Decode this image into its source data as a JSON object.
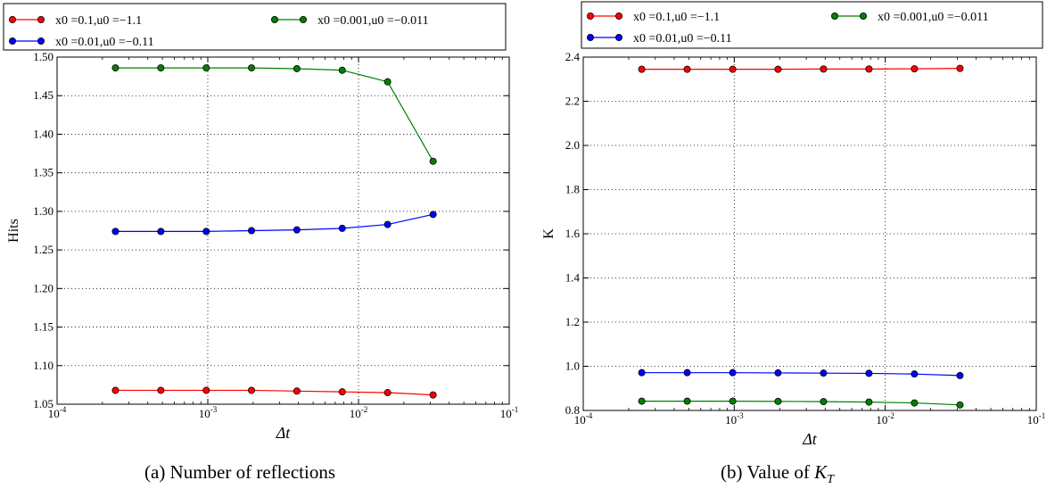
{
  "chart_data": [
    {
      "type": "line",
      "caption": "(a) Number of reflections",
      "xlabel": "Δt",
      "ylabel": "Hits",
      "xscale": "log",
      "xlim": [
        0.0001,
        0.1
      ],
      "ylim": [
        1.05,
        1.5
      ],
      "xticks": [
        0.0001,
        0.001,
        0.01,
        0.1
      ],
      "xtick_labels": [
        {
          "base": "10",
          "exp": "-4"
        },
        {
          "base": "10",
          "exp": "-3"
        },
        {
          "base": "10",
          "exp": "-2"
        },
        {
          "base": "10",
          "exp": "-1"
        }
      ],
      "yticks": [
        "1.05",
        "1.10",
        "1.15",
        "1.20",
        "1.25",
        "1.30",
        "1.35",
        "1.40",
        "1.45",
        "1.50"
      ],
      "grid": true,
      "legend_position": "above",
      "x": [
        0.000244,
        0.000488,
        0.000977,
        0.00195,
        0.0039,
        0.0078,
        0.0156,
        0.03125
      ],
      "series": [
        {
          "name": "x0 =0.1,u0 =−1.1",
          "color": "#ff0000",
          "values": [
            1.068,
            1.068,
            1.068,
            1.068,
            1.067,
            1.066,
            1.065,
            1.062
          ]
        },
        {
          "name": "x0 =0.01,u0 =−0.11",
          "color": "#0000ff",
          "values": [
            1.274,
            1.274,
            1.274,
            1.275,
            1.276,
            1.278,
            1.283,
            1.296
          ]
        },
        {
          "name": "x0 =0.001,u0 =−0.011",
          "color": "#008000",
          "values": [
            1.486,
            1.486,
            1.486,
            1.486,
            1.485,
            1.483,
            1.468,
            1.365
          ]
        }
      ]
    },
    {
      "type": "line",
      "caption_text": "(b) Value of ",
      "caption_math": "K",
      "caption_sub": "T",
      "xlabel": "Δt",
      "ylabel": "K",
      "xscale": "log",
      "xlim": [
        0.0001,
        0.1
      ],
      "ylim": [
        0.8,
        2.4
      ],
      "xticks": [
        0.0001,
        0.001,
        0.01,
        0.1
      ],
      "xtick_labels": [
        {
          "base": "10",
          "exp": "-4"
        },
        {
          "base": "10",
          "exp": "-3"
        },
        {
          "base": "10",
          "exp": "-2"
        },
        {
          "base": "10",
          "exp": "-1"
        }
      ],
      "yticks": [
        "0.8",
        "1.0",
        "1.2",
        "1.4",
        "1.6",
        "1.8",
        "2.0",
        "2.2",
        "2.4"
      ],
      "grid": true,
      "legend_position": "above",
      "x": [
        0.000244,
        0.000488,
        0.000977,
        0.00195,
        0.0039,
        0.0078,
        0.0156,
        0.03125
      ],
      "series": [
        {
          "name": "x0 =0.1,u0 =−1.1",
          "color": "#ff0000",
          "values": [
            2.345,
            2.345,
            2.345,
            2.345,
            2.346,
            2.346,
            2.347,
            2.349
          ]
        },
        {
          "name": "x0 =0.01,u0 =−0.11",
          "color": "#0000ff",
          "values": [
            0.971,
            0.971,
            0.971,
            0.97,
            0.969,
            0.968,
            0.965,
            0.958
          ]
        },
        {
          "name": "x0 =0.001,u0 =−0.011",
          "color": "#008000",
          "values": [
            0.842,
            0.842,
            0.842,
            0.841,
            0.84,
            0.838,
            0.834,
            0.825
          ]
        }
      ]
    }
  ]
}
